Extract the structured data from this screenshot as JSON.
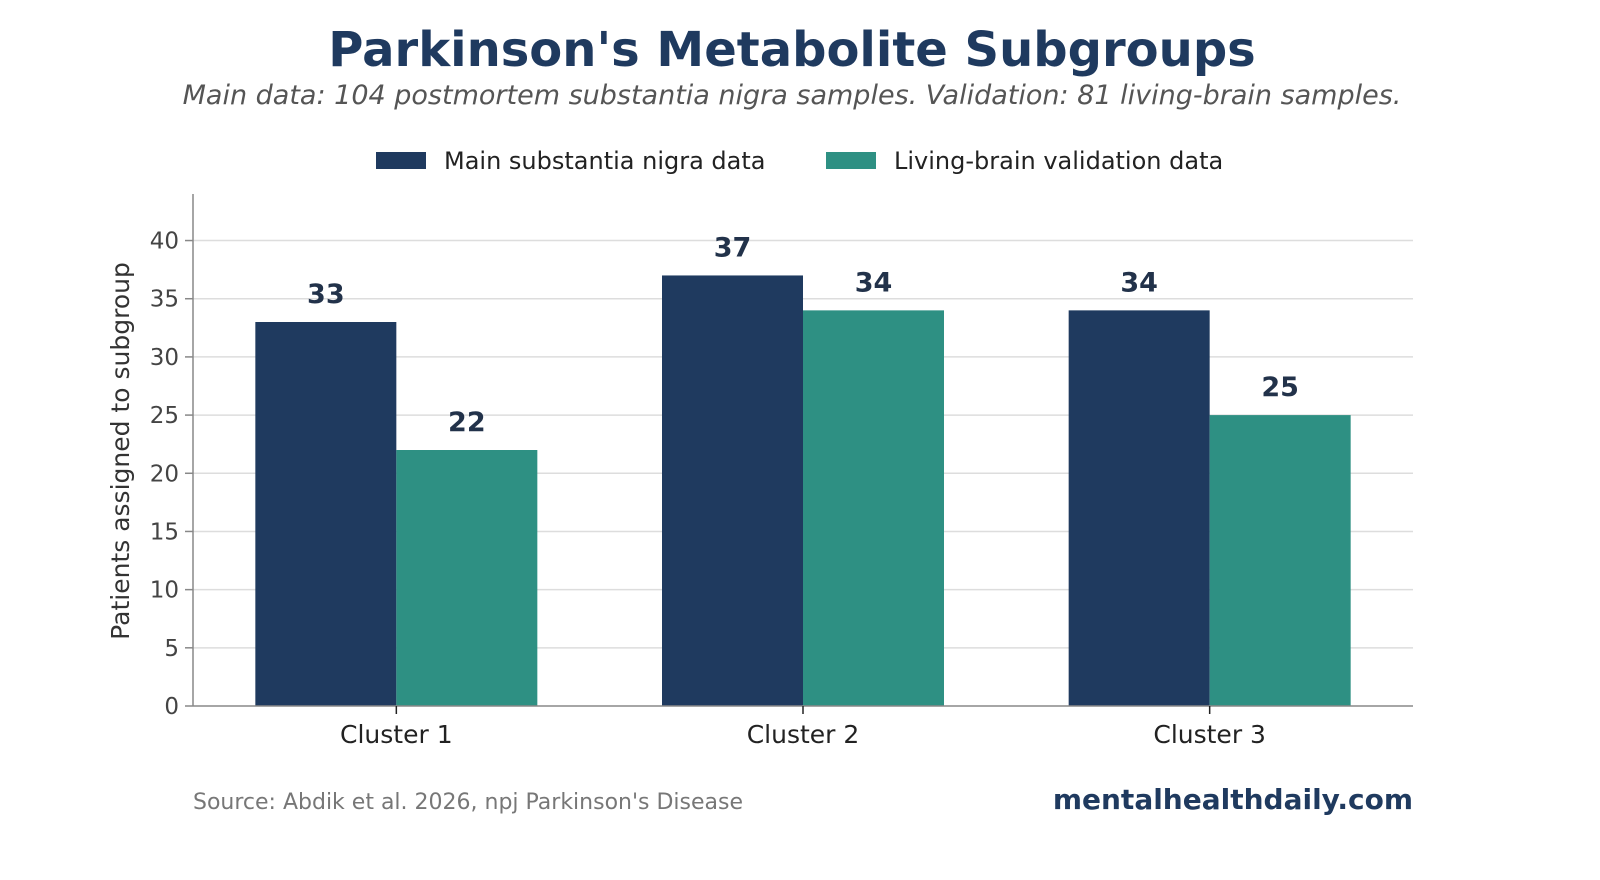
{
  "chart_data": {
    "type": "bar",
    "title": "Parkinson's Metabolite Subgroups",
    "subtitle": "Main data: 104 postmortem substantia nigra samples. Validation: 81 living-brain samples.",
    "categories": [
      "Cluster 1",
      "Cluster 2",
      "Cluster 3"
    ],
    "series": [
      {
        "name": "Main substantia nigra data",
        "values": [
          33,
          37,
          34
        ],
        "color": "#1f3a5f"
      },
      {
        "name": "Living-brain validation data",
        "values": [
          22,
          34,
          25
        ],
        "color": "#2e9083"
      }
    ],
    "xlabel": "",
    "ylabel": "Patients assigned to subgroup",
    "ylim": [
      0,
      44
    ],
    "yticks": [
      0,
      5,
      10,
      15,
      20,
      25,
      30,
      35,
      40
    ],
    "grid": true,
    "legend_position": "top-center",
    "data_labels": true
  },
  "footer": {
    "source": "Source: Abdik et al. 2026, npj Parkinson's Disease",
    "brand": "mentalhealthdaily.com"
  }
}
